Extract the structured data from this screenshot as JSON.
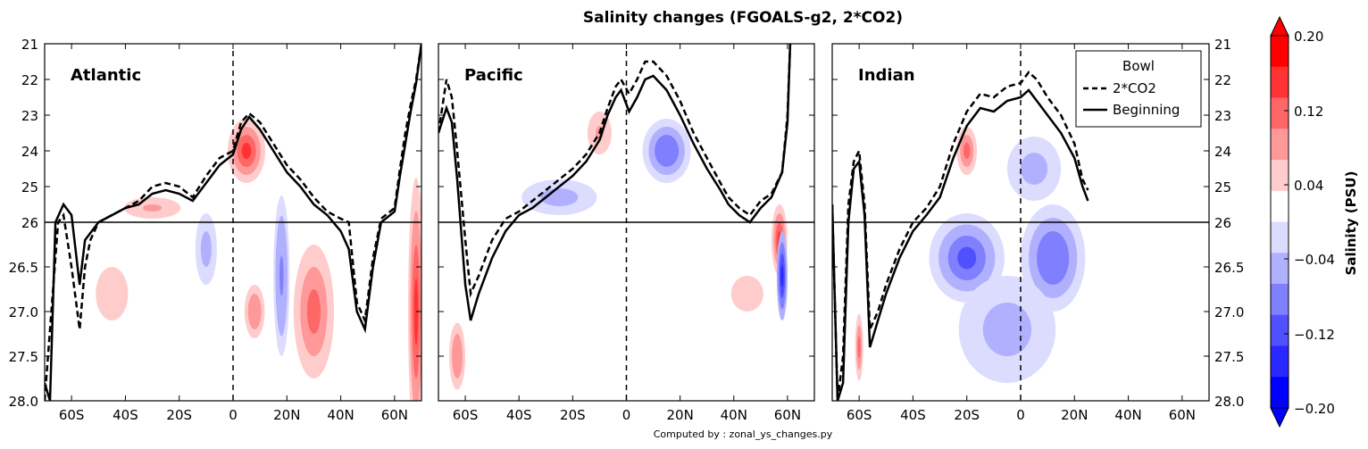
{
  "chart_data": {
    "type": "heatmap",
    "title": "Salinity changes (FGOALS-g2, 2*CO2)",
    "footer": "Computed by : zonal_ys_changes.py",
    "x_ticks": [
      "60S",
      "40S",
      "20S",
      "0",
      "20N",
      "40N",
      "60N"
    ],
    "x_range": [
      -70,
      70
    ],
    "y_ticks_upper": [
      "21",
      "22",
      "23",
      "24",
      "25",
      "26"
    ],
    "y_ticks_lower": [
      "26.5",
      "27.0",
      "27.5",
      "28.0"
    ],
    "y_range": [
      21,
      28
    ],
    "y_break": 26,
    "panels": [
      {
        "name": "Atlantic",
        "bowl_2xco2": [
          [
            -70,
            28.0
          ],
          [
            -68,
            27.2
          ],
          [
            -65,
            26.0
          ],
          [
            -63,
            25.8
          ],
          [
            -60,
            26.5
          ],
          [
            -57,
            27.2
          ],
          [
            -55,
            26.5
          ],
          [
            -53,
            26.2
          ],
          [
            -50,
            26.0
          ],
          [
            -45,
            25.8
          ],
          [
            -40,
            25.6
          ],
          [
            -35,
            25.4
          ],
          [
            -30,
            25.0
          ],
          [
            -25,
            24.9
          ],
          [
            -20,
            25.0
          ],
          [
            -15,
            25.3
          ],
          [
            -10,
            24.7
          ],
          [
            -5,
            24.2
          ],
          [
            0,
            24.0
          ],
          [
            3,
            23.2
          ],
          [
            6,
            22.95
          ],
          [
            10,
            23.2
          ],
          [
            15,
            23.8
          ],
          [
            20,
            24.4
          ],
          [
            25,
            24.8
          ],
          [
            30,
            25.3
          ],
          [
            35,
            25.7
          ],
          [
            40,
            25.9
          ],
          [
            43,
            26.0
          ],
          [
            46,
            26.9
          ],
          [
            49,
            27.1
          ],
          [
            52,
            26.4
          ],
          [
            55,
            25.9
          ],
          [
            60,
            25.6
          ],
          [
            62,
            24.5
          ],
          [
            64,
            23.5
          ],
          [
            66,
            22.7
          ],
          [
            68,
            22.0
          ],
          [
            70,
            21.0
          ]
        ],
        "bowl_beginning": [
          [
            -70,
            27.8
          ],
          [
            -68,
            28.0
          ],
          [
            -66,
            26.0
          ],
          [
            -63,
            25.5
          ],
          [
            -60,
            25.8
          ],
          [
            -57,
            26.7
          ],
          [
            -55,
            26.2
          ],
          [
            -50,
            26.0
          ],
          [
            -45,
            25.8
          ],
          [
            -40,
            25.6
          ],
          [
            -35,
            25.5
          ],
          [
            -30,
            25.2
          ],
          [
            -25,
            25.1
          ],
          [
            -20,
            25.2
          ],
          [
            -15,
            25.4
          ],
          [
            -10,
            24.9
          ],
          [
            -5,
            24.4
          ],
          [
            0,
            24.1
          ],
          [
            3,
            23.4
          ],
          [
            6,
            23.05
          ],
          [
            10,
            23.4
          ],
          [
            15,
            24.0
          ],
          [
            20,
            24.6
          ],
          [
            25,
            25.0
          ],
          [
            30,
            25.5
          ],
          [
            35,
            25.8
          ],
          [
            40,
            26.1
          ],
          [
            43,
            26.3
          ],
          [
            46,
            27.0
          ],
          [
            49,
            27.2
          ],
          [
            52,
            26.5
          ],
          [
            55,
            26.0
          ],
          [
            60,
            25.7
          ],
          [
            62,
            24.7
          ],
          [
            64,
            23.8
          ],
          [
            66,
            22.9
          ],
          [
            68,
            22.1
          ],
          [
            70,
            21.0
          ]
        ]
      },
      {
        "name": "Pacific",
        "bowl_2xco2": [
          [
            -70,
            23.5
          ],
          [
            -67,
            22.0
          ],
          [
            -65,
            22.5
          ],
          [
            -63,
            24.0
          ],
          [
            -60,
            26.2
          ],
          [
            -58,
            26.8
          ],
          [
            -55,
            26.6
          ],
          [
            -50,
            26.2
          ],
          [
            -45,
            25.9
          ],
          [
            -40,
            25.7
          ],
          [
            -35,
            25.4
          ],
          [
            -30,
            25.1
          ],
          [
            -25,
            24.8
          ],
          [
            -20,
            24.5
          ],
          [
            -15,
            24.1
          ],
          [
            -10,
            23.5
          ],
          [
            -7,
            22.8
          ],
          [
            -4,
            22.2
          ],
          [
            -2,
            22.0
          ],
          [
            1,
            22.4
          ],
          [
            4,
            22.0
          ],
          [
            7,
            21.5
          ],
          [
            10,
            21.5
          ],
          [
            15,
            21.9
          ],
          [
            20,
            22.6
          ],
          [
            25,
            23.5
          ],
          [
            30,
            24.2
          ],
          [
            35,
            24.9
          ],
          [
            38,
            25.3
          ],
          [
            42,
            25.6
          ],
          [
            46,
            25.8
          ],
          [
            50,
            25.4
          ],
          [
            54,
            25.2
          ],
          [
            58,
            24.6
          ],
          [
            60,
            23.0
          ],
          [
            61,
            21.0
          ]
        ],
        "bowl_beginning": [
          [
            -70,
            23.5
          ],
          [
            -67,
            22.8
          ],
          [
            -65,
            23.2
          ],
          [
            -63,
            24.8
          ],
          [
            -60,
            26.7
          ],
          [
            -58,
            27.1
          ],
          [
            -55,
            26.8
          ],
          [
            -50,
            26.4
          ],
          [
            -45,
            26.1
          ],
          [
            -40,
            25.8
          ],
          [
            -35,
            25.6
          ],
          [
            -30,
            25.3
          ],
          [
            -25,
            25.0
          ],
          [
            -20,
            24.7
          ],
          [
            -15,
            24.3
          ],
          [
            -10,
            23.7
          ],
          [
            -7,
            23.0
          ],
          [
            -4,
            22.5
          ],
          [
            -2,
            22.3
          ],
          [
            1,
            22.9
          ],
          [
            4,
            22.5
          ],
          [
            7,
            22.0
          ],
          [
            10,
            21.9
          ],
          [
            15,
            22.3
          ],
          [
            20,
            23.0
          ],
          [
            25,
            23.8
          ],
          [
            30,
            24.5
          ],
          [
            35,
            25.1
          ],
          [
            38,
            25.5
          ],
          [
            42,
            25.8
          ],
          [
            46,
            26.0
          ],
          [
            50,
            25.6
          ],
          [
            54,
            25.3
          ],
          [
            58,
            24.6
          ],
          [
            60,
            23.2
          ],
          [
            61,
            21.0
          ]
        ]
      },
      {
        "name": "Indian",
        "bowl_2xco2": [
          [
            -70,
            25.5
          ],
          [
            -68,
            28.0
          ],
          [
            -66,
            27.5
          ],
          [
            -64,
            25.5
          ],
          [
            -62,
            24.3
          ],
          [
            -60,
            24.0
          ],
          [
            -58,
            25.5
          ],
          [
            -56,
            27.2
          ],
          [
            -53,
            27.0
          ],
          [
            -50,
            26.7
          ],
          [
            -45,
            26.3
          ],
          [
            -40,
            26.0
          ],
          [
            -35,
            25.6
          ],
          [
            -30,
            25.0
          ],
          [
            -25,
            23.8
          ],
          [
            -20,
            22.9
          ],
          [
            -15,
            22.4
          ],
          [
            -10,
            22.5
          ],
          [
            -5,
            22.2
          ],
          [
            0,
            22.1
          ],
          [
            3,
            21.8
          ],
          [
            6,
            22.0
          ],
          [
            10,
            22.5
          ],
          [
            15,
            23.0
          ],
          [
            20,
            23.8
          ],
          [
            23,
            24.8
          ],
          [
            25,
            25.1
          ]
        ],
        "bowl_beginning": [
          [
            -70,
            25.5
          ],
          [
            -68,
            28.0
          ],
          [
            -66,
            27.8
          ],
          [
            -64,
            26.0
          ],
          [
            -62,
            24.5
          ],
          [
            -60,
            24.3
          ],
          [
            -58,
            25.8
          ],
          [
            -56,
            27.4
          ],
          [
            -53,
            27.1
          ],
          [
            -50,
            26.8
          ],
          [
            -45,
            26.4
          ],
          [
            -40,
            26.1
          ],
          [
            -35,
            25.8
          ],
          [
            -30,
            25.3
          ],
          [
            -25,
            24.2
          ],
          [
            -20,
            23.3
          ],
          [
            -15,
            22.8
          ],
          [
            -10,
            22.9
          ],
          [
            -5,
            22.6
          ],
          [
            0,
            22.5
          ],
          [
            3,
            22.3
          ],
          [
            6,
            22.6
          ],
          [
            10,
            23.0
          ],
          [
            15,
            23.5
          ],
          [
            20,
            24.2
          ],
          [
            23,
            25.0
          ],
          [
            25,
            25.4
          ]
        ]
      }
    ],
    "legend": {
      "title": "Bowl",
      "entries": [
        {
          "label": "2*CO2",
          "style": "dashed"
        },
        {
          "label": "Beginning",
          "style": "solid"
        }
      ],
      "placement": "top-right of Indian panel"
    },
    "colorbar": {
      "label": "Salinity (PSU)",
      "ticks": [
        "0.20",
        "0.12",
        "0.04",
        "−0.04",
        "−0.12",
        "−0.20"
      ],
      "levels": [
        -0.2,
        0.2
      ],
      "n_colors": 10,
      "colors_top_to_bottom": [
        "#ff0000",
        "#ff3333",
        "#ff6666",
        "#ff9999",
        "#ffcccc",
        "#ffffff",
        "#dcdcff",
        "#b0b0ff",
        "#8080ff",
        "#5050ff",
        "#2828ff",
        "#0000ff"
      ],
      "extend": "both"
    },
    "anomaly_fields": {
      "Atlantic": [
        {
          "cx": 5,
          "cy": 24.0,
          "rx": 7,
          "ry": 0.9,
          "v": 0.16
        },
        {
          "cx": -30,
          "cy": 25.6,
          "rx": 14,
          "ry": 0.4,
          "v": 0.09
        },
        {
          "cx": -45,
          "cy": 26.8,
          "rx": 12,
          "ry": 0.6,
          "v": 0.07
        },
        {
          "cx": 30,
          "cy": 27.0,
          "rx": 10,
          "ry": 1.0,
          "v": 0.14
        },
        {
          "cx": 8,
          "cy": 27.0,
          "rx": 5,
          "ry": 0.4,
          "v": 0.1
        },
        {
          "cx": -10,
          "cy": 26.3,
          "rx": 4,
          "ry": 0.4,
          "v": -0.05
        },
        {
          "cx": 18,
          "cy": 26.6,
          "rx": 3,
          "ry": 0.9,
          "v": -0.08
        },
        {
          "cx": 68,
          "cy": 27.0,
          "rx": 3,
          "ry": 1.5,
          "v": 0.18
        }
      ],
      "Pacific": [
        {
          "cx": 15,
          "cy": 24.0,
          "rx": 9,
          "ry": 0.9,
          "v": -0.1
        },
        {
          "cx": -10,
          "cy": 23.5,
          "rx": 6,
          "ry": 0.8,
          "v": 0.08
        },
        {
          "cx": -25,
          "cy": 25.3,
          "rx": 14,
          "ry": 0.5,
          "v": -0.05
        },
        {
          "cx": 45,
          "cy": 26.8,
          "rx": 12,
          "ry": 0.4,
          "v": 0.07
        },
        {
          "cx": 57,
          "cy": 26.2,
          "rx": 3,
          "ry": 0.4,
          "v": 0.16
        },
        {
          "cx": 58,
          "cy": 26.6,
          "rx": 2,
          "ry": 0.5,
          "v": -0.16
        },
        {
          "cx": -63,
          "cy": 27.5,
          "rx": 4,
          "ry": 0.5,
          "v": 0.1
        }
      ],
      "Indian": [
        {
          "cx": -20,
          "cy": 24.0,
          "rx": 5,
          "ry": 0.9,
          "v": 0.12
        },
        {
          "cx": -20,
          "cy": 26.4,
          "rx": 14,
          "ry": 0.5,
          "v": -0.12
        },
        {
          "cx": 12,
          "cy": 26.4,
          "rx": 12,
          "ry": 0.6,
          "v": -0.1
        },
        {
          "cx": 5,
          "cy": 24.5,
          "rx": 10,
          "ry": 0.9,
          "v": -0.06
        },
        {
          "cx": -5,
          "cy": 27.2,
          "rx": 18,
          "ry": 0.6,
          "v": -0.07
        },
        {
          "cx": -60,
          "cy": 27.4,
          "rx": 2,
          "ry": 0.5,
          "v": 0.12
        }
      ]
    },
    "data_limits": {
      "Atlantic": [
        -70,
        70
      ],
      "Pacific": [
        -70,
        62
      ],
      "Indian": [
        -70,
        25
      ]
    }
  }
}
